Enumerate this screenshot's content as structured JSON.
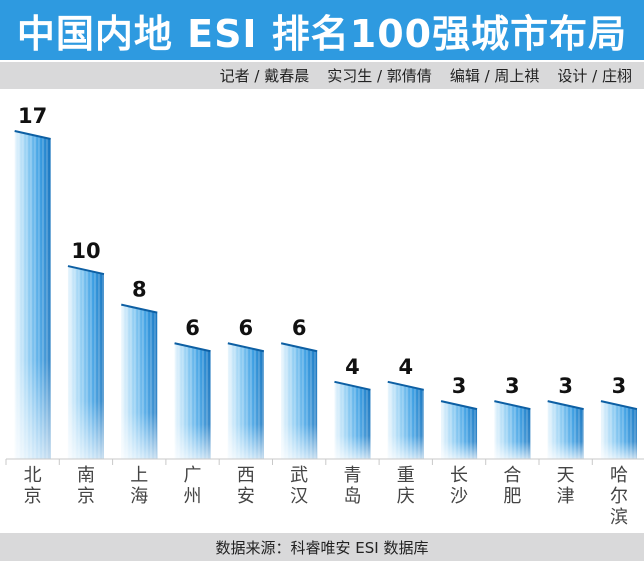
{
  "title": "中国内地 ESI 排名100强城市布局",
  "credits": [
    "记者 / 戴春晨",
    "实习生 / 郭倩倩",
    "编辑 / 周上祺",
    "设计 / 庄栩"
  ],
  "source": "数据来源：科睿唯安 ESI 数据库",
  "colors": {
    "title_bg": "#2e9ae0",
    "bar_light": "#d6ecfb",
    "bar_mid": "#58b4ec",
    "bar_dark": "#1472bd"
  },
  "chart_data": {
    "type": "bar",
    "title": "中国内地 ESI 排名100强城市布局",
    "categories": [
      "北京",
      "南京",
      "上海",
      "广州",
      "西安",
      "武汉",
      "青岛",
      "重庆",
      "长沙",
      "合肥",
      "天津",
      "哈尔滨"
    ],
    "values": [
      17,
      10,
      8,
      6,
      6,
      6,
      4,
      4,
      3,
      3,
      3,
      3
    ],
    "ylim": [
      0,
      17
    ]
  }
}
